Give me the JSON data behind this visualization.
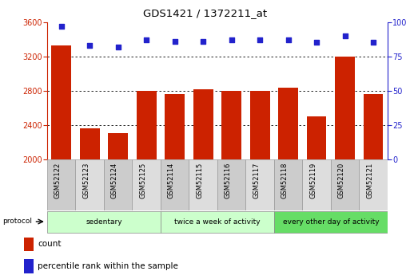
{
  "title": "GDS1421 / 1372211_at",
  "categories": [
    "GSM52122",
    "GSM52123",
    "GSM52124",
    "GSM52125",
    "GSM52114",
    "GSM52115",
    "GSM52116",
    "GSM52117",
    "GSM52118",
    "GSM52119",
    "GSM52120",
    "GSM52121"
  ],
  "counts": [
    3330,
    2360,
    2310,
    2800,
    2760,
    2820,
    2800,
    2800,
    2840,
    2500,
    3200,
    2760
  ],
  "percentiles": [
    97,
    83,
    82,
    87,
    86,
    86,
    87,
    87,
    87,
    85,
    90,
    85
  ],
  "bar_color": "#cc2200",
  "dot_color": "#2222cc",
  "ylim_left": [
    2000,
    3600
  ],
  "ylim_right": [
    0,
    100
  ],
  "yticks_left": [
    2000,
    2400,
    2800,
    3200,
    3600
  ],
  "yticks_right": [
    0,
    25,
    50,
    75,
    100
  ],
  "grid_color": "#000000",
  "groups": [
    {
      "label": "sedentary",
      "start": 0,
      "end": 4,
      "color": "#ccffcc"
    },
    {
      "label": "twice a week of activity",
      "start": 4,
      "end": 8,
      "color": "#ccffcc"
    },
    {
      "label": "every other day of activity",
      "start": 8,
      "end": 12,
      "color": "#66dd66"
    }
  ],
  "legend_items": [
    {
      "label": "count",
      "color": "#cc2200"
    },
    {
      "label": "percentile rank within the sample",
      "color": "#2222cc"
    }
  ],
  "protocol_label": "protocol",
  "left_axis_color": "#cc2200",
  "right_axis_color": "#2222cc",
  "background_color": "#ffffff",
  "plot_bg_color": "#ffffff",
  "bar_width": 0.7,
  "cell_bg_color": "#cccccc",
  "cell_bg_color2": "#dddddd"
}
